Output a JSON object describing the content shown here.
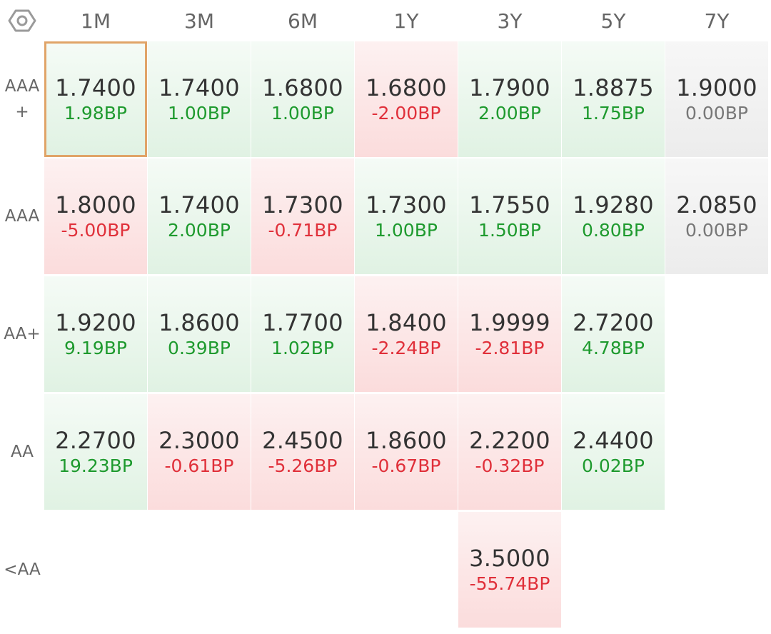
{
  "settings_icon": "settings-hexagon-icon",
  "columns": [
    "1M",
    "3M",
    "6M",
    "1Y",
    "3Y",
    "5Y",
    "7Y"
  ],
  "rows": [
    {
      "rating_lines": [
        "AAA",
        "+"
      ],
      "cells": [
        {
          "yield": "1.7400",
          "change": "1.98BP",
          "direction": "up",
          "selected": true
        },
        {
          "yield": "1.7400",
          "change": "1.00BP",
          "direction": "up"
        },
        {
          "yield": "1.6800",
          "change": "1.00BP",
          "direction": "up"
        },
        {
          "yield": "1.6800",
          "change": "-2.00BP",
          "direction": "down"
        },
        {
          "yield": "1.7900",
          "change": "2.00BP",
          "direction": "up"
        },
        {
          "yield": "1.8875",
          "change": "1.75BP",
          "direction": "up"
        },
        {
          "yield": "1.9000",
          "change": "0.00BP",
          "direction": "flat"
        }
      ]
    },
    {
      "rating_lines": [
        "AAA"
      ],
      "cells": [
        {
          "yield": "1.8000",
          "change": "-5.00BP",
          "direction": "down"
        },
        {
          "yield": "1.7400",
          "change": "2.00BP",
          "direction": "up"
        },
        {
          "yield": "1.7300",
          "change": "-0.71BP",
          "direction": "down"
        },
        {
          "yield": "1.7300",
          "change": "1.00BP",
          "direction": "up"
        },
        {
          "yield": "1.7550",
          "change": "1.50BP",
          "direction": "up"
        },
        {
          "yield": "1.9280",
          "change": "0.80BP",
          "direction": "up"
        },
        {
          "yield": "2.0850",
          "change": "0.00BP",
          "direction": "flat"
        }
      ]
    },
    {
      "rating_lines": [
        "AA+"
      ],
      "cells": [
        {
          "yield": "1.9200",
          "change": "9.19BP",
          "direction": "up"
        },
        {
          "yield": "1.8600",
          "change": "0.39BP",
          "direction": "up"
        },
        {
          "yield": "1.7700",
          "change": "1.02BP",
          "direction": "up"
        },
        {
          "yield": "1.8400",
          "change": "-2.24BP",
          "direction": "down"
        },
        {
          "yield": "1.9999",
          "change": "-2.81BP",
          "direction": "down"
        },
        {
          "yield": "2.7200",
          "change": "4.78BP",
          "direction": "up"
        },
        null
      ]
    },
    {
      "rating_lines": [
        "AA"
      ],
      "cells": [
        {
          "yield": "2.2700",
          "change": "19.23BP",
          "direction": "up"
        },
        {
          "yield": "2.3000",
          "change": "-0.61BP",
          "direction": "down"
        },
        {
          "yield": "2.4500",
          "change": "-5.26BP",
          "direction": "down"
        },
        {
          "yield": "1.8600",
          "change": "-0.67BP",
          "direction": "down"
        },
        {
          "yield": "2.2200",
          "change": "-0.32BP",
          "direction": "down"
        },
        {
          "yield": "2.4400",
          "change": "0.02BP",
          "direction": "up"
        },
        null
      ]
    },
    {
      "rating_lines": [
        "<AA"
      ],
      "cells": [
        null,
        null,
        null,
        null,
        {
          "yield": "3.5000",
          "change": "-55.74BP",
          "direction": "down"
        },
        null,
        null
      ]
    }
  ]
}
